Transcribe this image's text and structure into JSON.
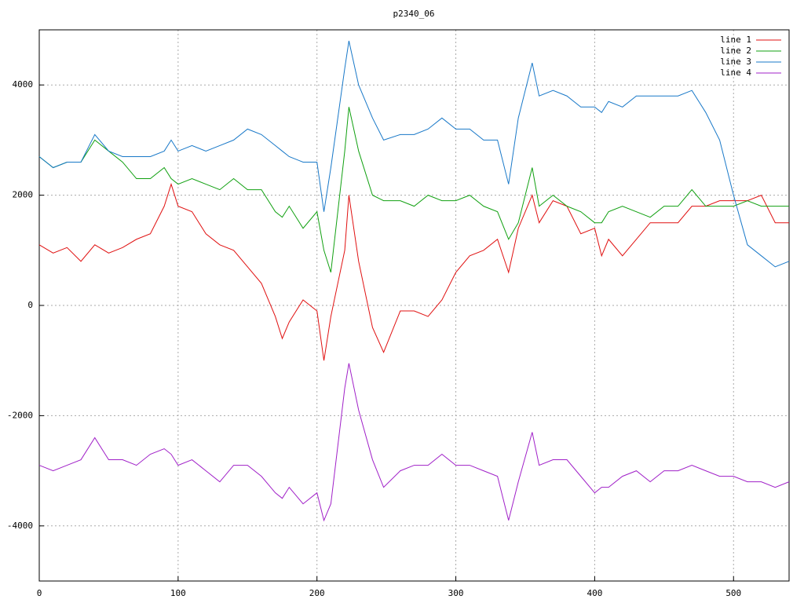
{
  "chart_data": {
    "type": "line",
    "title": "p2340_06",
    "x": [
      0,
      10,
      20,
      30,
      40,
      50,
      60,
      70,
      80,
      90,
      95,
      100,
      110,
      120,
      130,
      140,
      150,
      160,
      170,
      175,
      180,
      190,
      200,
      205,
      210,
      220,
      223,
      230,
      240,
      248,
      260,
      270,
      280,
      290,
      300,
      310,
      320,
      330,
      338,
      345,
      355,
      360,
      370,
      380,
      390,
      400,
      405,
      410,
      420,
      430,
      440,
      450,
      460,
      470,
      480,
      490,
      500,
      510,
      520,
      530,
      540
    ],
    "series": [
      {
        "name": "line 1",
        "color": "#e01010",
        "values": [
          1100,
          950,
          1050,
          800,
          1100,
          950,
          1050,
          1200,
          1300,
          1800,
          2200,
          1800,
          1700,
          1300,
          1100,
          1000,
          700,
          400,
          -200,
          -600,
          -300,
          100,
          -100,
          -1000,
          -200,
          1000,
          2000,
          800,
          -400,
          -850,
          -100,
          -100,
          -200,
          100,
          600,
          900,
          1000,
          1200,
          600,
          1400,
          2000,
          1500,
          1900,
          1800,
          1300,
          1400,
          900,
          1200,
          900,
          1200,
          1500,
          1500,
          1500,
          1800,
          1800,
          1900,
          1900,
          1900,
          2000,
          1500,
          1500
        ]
      },
      {
        "name": "line 2",
        "color": "#10a010",
        "values": [
          2700,
          2500,
          2600,
          2600,
          3000,
          2800,
          2600,
          2300,
          2300,
          2500,
          2300,
          2200,
          2300,
          2200,
          2100,
          2300,
          2100,
          2100,
          1700,
          1600,
          1800,
          1400,
          1700,
          1000,
          600,
          2800,
          3600,
          2800,
          2000,
          1900,
          1900,
          1800,
          2000,
          1900,
          1900,
          2000,
          1800,
          1700,
          1200,
          1500,
          2500,
          1800,
          2000,
          1800,
          1700,
          1500,
          1500,
          1700,
          1800,
          1700,
          1600,
          1800,
          1800,
          2100,
          1800,
          1800,
          1800,
          1900,
          1800,
          1800,
          1800
        ]
      },
      {
        "name": "line 3",
        "color": "#1878c8",
        "values": [
          2700,
          2500,
          2600,
          2600,
          3100,
          2800,
          2700,
          2700,
          2700,
          2800,
          3000,
          2800,
          2900,
          2800,
          2900,
          3000,
          3200,
          3100,
          2900,
          2800,
          2700,
          2600,
          2600,
          1700,
          2500,
          4300,
          4800,
          4000,
          3400,
          3000,
          3100,
          3100,
          3200,
          3400,
          3200,
          3200,
          3000,
          3000,
          2200,
          3400,
          4400,
          3800,
          3900,
          3800,
          3600,
          3600,
          3500,
          3700,
          3600,
          3800,
          3800,
          3800,
          3800,
          3900,
          3500,
          3000,
          2000,
          1100,
          900,
          700,
          800
        ]
      },
      {
        "name": "line 4",
        "color": "#a020c8",
        "values": [
          -2900,
          -3000,
          -2900,
          -2800,
          -2400,
          -2800,
          -2800,
          -2900,
          -2700,
          -2600,
          -2700,
          -2900,
          -2800,
          -3000,
          -3200,
          -2900,
          -2900,
          -3100,
          -3400,
          -3500,
          -3300,
          -3600,
          -3400,
          -3900,
          -3600,
          -1500,
          -1050,
          -1900,
          -2800,
          -3300,
          -3000,
          -2900,
          -2900,
          -2700,
          -2900,
          -2900,
          -3000,
          -3100,
          -3900,
          -3200,
          -2300,
          -2900,
          -2800,
          -2800,
          -3100,
          -3400,
          -3300,
          -3300,
          -3100,
          -3000,
          -3200,
          -3000,
          -3000,
          -2900,
          -3000,
          -3100,
          -3100,
          -3200,
          -3200,
          -3300,
          -3200
        ]
      }
    ],
    "xlim": [
      0,
      540
    ],
    "ylim": [
      -5000,
      5000
    ],
    "xticks": [
      0,
      100,
      200,
      300,
      400,
      500
    ],
    "yticks": [
      -4000,
      -2000,
      0,
      2000,
      4000
    ],
    "grid": true,
    "legend": "top-right"
  }
}
